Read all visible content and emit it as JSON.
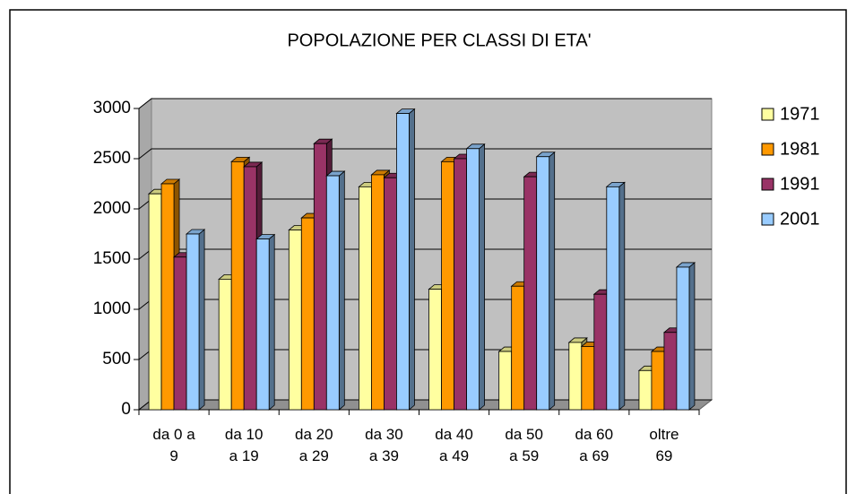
{
  "chart_data": {
    "type": "bar3d",
    "title": "POPOLAZIONE PER CLASSI DI ETA'",
    "categories": [
      "da 0 a 9",
      "da 10 a 19",
      "da 20 a 29",
      "da 30 a 39",
      "da 40 a 49",
      "da 50 a 59",
      "da 60 a 69",
      "oltre 69"
    ],
    "series": [
      {
        "name": "1971",
        "color": "#ffffa0",
        "values": [
          2150,
          1300,
          1790,
          2220,
          1200,
          580,
          670,
          390
        ]
      },
      {
        "name": "1981",
        "color": "#ff9900",
        "values": [
          2250,
          2470,
          1910,
          2340,
          2470,
          1230,
          630,
          580
        ]
      },
      {
        "name": "1991",
        "color": "#993366",
        "values": [
          1520,
          2420,
          2650,
          2310,
          2500,
          2320,
          1150,
          770
        ]
      },
      {
        "name": "2001",
        "color": "#99ccff",
        "values": [
          1750,
          1700,
          2330,
          2950,
          2600,
          2520,
          2220,
          1420
        ]
      }
    ],
    "ylim": [
      0,
      3000
    ],
    "yticks": [
      0,
      500,
      1000,
      1500,
      2000,
      2500,
      3000
    ],
    "grid": true,
    "legend": "right"
  }
}
